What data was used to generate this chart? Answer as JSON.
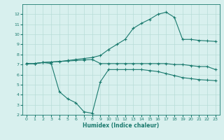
{
  "line1_x": [
    0,
    1,
    2,
    3,
    4,
    5,
    6,
    7,
    8,
    9,
    10,
    11,
    12,
    13,
    14,
    15,
    16,
    17,
    18,
    19,
    20,
    21,
    22,
    23
  ],
  "line1_y": [
    7.1,
    7.1,
    7.2,
    7.25,
    7.3,
    7.4,
    7.5,
    7.6,
    7.7,
    7.9,
    8.5,
    9.0,
    9.5,
    10.6,
    11.1,
    11.5,
    12.0,
    12.2,
    11.7,
    9.5,
    9.5,
    9.4,
    9.35,
    9.3
  ],
  "line2_x": [
    0,
    1,
    2,
    3,
    4,
    5,
    6,
    7,
    8,
    9,
    10,
    11,
    12,
    13,
    14,
    15,
    16,
    17,
    18,
    19,
    20,
    21,
    22,
    23
  ],
  "line2_y": [
    7.1,
    7.1,
    7.2,
    7.25,
    7.3,
    7.35,
    7.4,
    7.45,
    7.5,
    7.1,
    7.1,
    7.1,
    7.1,
    7.1,
    7.1,
    7.1,
    7.1,
    7.1,
    7.0,
    7.0,
    6.9,
    6.8,
    6.8,
    6.5
  ],
  "line3_x": [
    0,
    1,
    2,
    3,
    4,
    5,
    6,
    7,
    8,
    9,
    10,
    11,
    12,
    13,
    14,
    15,
    16,
    17,
    18,
    19,
    20,
    21,
    22,
    23
  ],
  "line3_y": [
    7.1,
    7.1,
    7.2,
    7.1,
    4.3,
    3.6,
    3.2,
    2.3,
    2.15,
    5.3,
    6.5,
    6.5,
    6.5,
    6.5,
    6.5,
    6.4,
    6.3,
    6.1,
    5.9,
    5.7,
    5.6,
    5.5,
    5.45,
    5.4
  ],
  "color": "#1a7a6e",
  "bg_color": "#d8f0ee",
  "grid_color": "#b8dcd8",
  "xlabel": "Humidex (Indice chaleur)",
  "xlim": [
    -0.5,
    23.5
  ],
  "ylim": [
    2,
    13
  ],
  "xticks": [
    0,
    1,
    2,
    3,
    4,
    5,
    6,
    7,
    8,
    9,
    10,
    11,
    12,
    13,
    14,
    15,
    16,
    17,
    18,
    19,
    20,
    21,
    22,
    23
  ],
  "yticks": [
    2,
    3,
    4,
    5,
    6,
    7,
    8,
    9,
    10,
    11,
    12
  ]
}
